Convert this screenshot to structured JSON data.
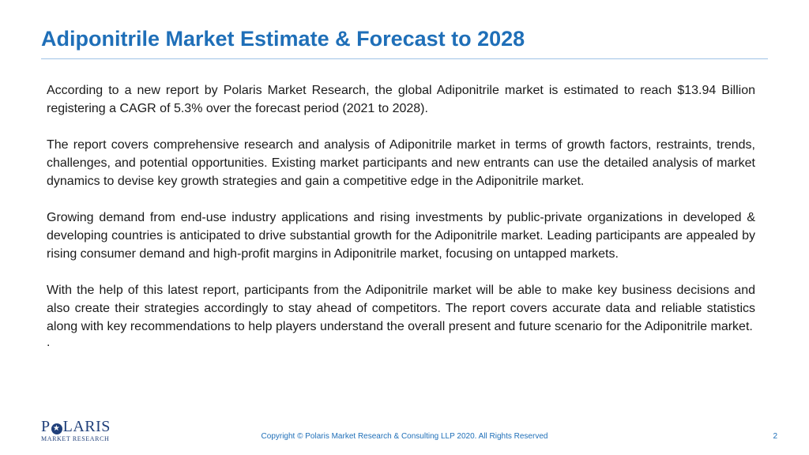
{
  "slide": {
    "title": "Adiponitrile Market Estimate & Forecast to 2028",
    "paragraphs": [
      "According to a new report by Polaris Market Research, the global Adiponitrile market is estimated to reach $13.94 Billion registering a CAGR of 5.3% over the forecast period (2021 to 2028).",
      "The report covers comprehensive research and analysis of Adiponitrile market in terms of growth factors, restraints, trends, challenges, and potential opportunities. Existing market participants and new entrants can use the detailed analysis of market dynamics to devise key growth strategies and gain a competitive edge in the Adiponitrile market.",
      "Growing demand from end-use industry applications and rising investments by public-private organizations in developed & developing countries is anticipated to drive substantial growth for the Adiponitrile market. Leading participants are appealed by rising consumer demand and high-profit margins in Adiponitrile market, focusing on untapped markets.",
      "With the help of this latest report, participants from the Adiponitrile market will be able to make key business decisions and also create their strategies accordingly to stay ahead of competitors. The report covers accurate data and reliable statistics along with key recommendations to help players understand the overall present and future scenario for the Adiponitrile market."
    ],
    "trailing_mark": "."
  },
  "logo": {
    "name_part1": "P",
    "name_part2": "LARIS",
    "star_glyph": "★",
    "subtitle": "MARKET RESEARCH",
    "icon": "star-in-circle-icon"
  },
  "footer": {
    "copyright": "Copyright © Polaris Market Research & Consulting LLP 2020. All Rights Reserved",
    "page_number": "2"
  },
  "colors": {
    "title": "#1f6fb8",
    "rule": "#9ec3e6",
    "body_text": "#1a1a1a",
    "logo": "#1f3f7a",
    "footer": "#1f6fb8"
  }
}
